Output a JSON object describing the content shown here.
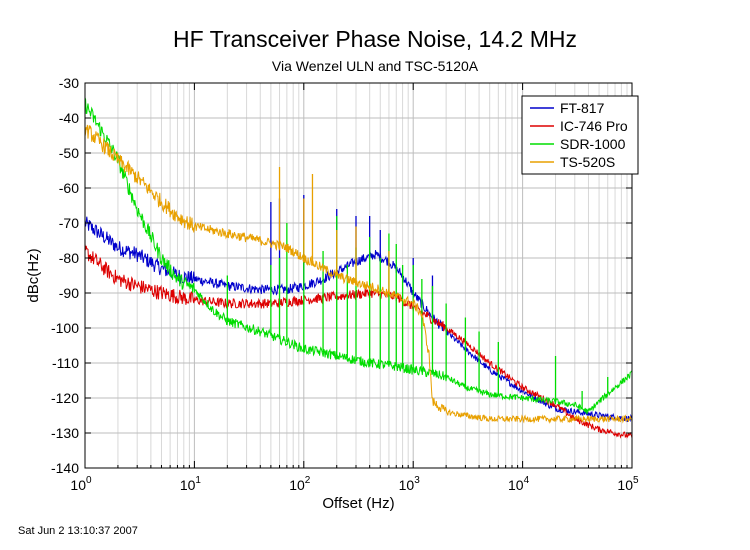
{
  "footer": {
    "timestamp": "Sat Jun  2 13:10:37 2007"
  },
  "chart_data": {
    "type": "line",
    "title": "HF Transceiver Phase Noise, 14.2 MHz",
    "subtitle": "Via Wenzel ULN and TSC-5120A",
    "xlabel": "Offset (Hz)",
    "ylabel": "dBc(Hz)",
    "xscale": "log",
    "xlim": [
      1,
      100000
    ],
    "ylim": [
      -140,
      -30
    ],
    "x_ticks": [
      {
        "base": "10",
        "exp": "0"
      },
      {
        "base": "10",
        "exp": "1"
      },
      {
        "base": "10",
        "exp": "2"
      },
      {
        "base": "10",
        "exp": "3"
      },
      {
        "base": "10",
        "exp": "4"
      },
      {
        "base": "10",
        "exp": "5"
      }
    ],
    "y_ticks": [
      "-30",
      "-40",
      "-50",
      "-60",
      "-70",
      "-80",
      "-90",
      "-100",
      "-110",
      "-120",
      "-130",
      "-140"
    ],
    "grid": true,
    "legend_position": "top-right",
    "series": [
      {
        "name": "FT-817",
        "color": "#0000cc",
        "points": [
          [
            1,
            -70
          ],
          [
            1.5,
            -74
          ],
          [
            2,
            -77
          ],
          [
            3,
            -79
          ],
          [
            5,
            -83
          ],
          [
            7,
            -85
          ],
          [
            10,
            -86
          ],
          [
            20,
            -88
          ],
          [
            40,
            -89
          ],
          [
            70,
            -89
          ],
          [
            100,
            -88
          ],
          [
            150,
            -86
          ],
          [
            200,
            -84
          ],
          [
            300,
            -81
          ],
          [
            450,
            -79
          ],
          [
            600,
            -81
          ],
          [
            800,
            -85
          ],
          [
            1000,
            -90
          ],
          [
            1500,
            -97
          ],
          [
            2000,
            -101
          ],
          [
            3000,
            -106
          ],
          [
            5000,
            -112
          ],
          [
            10000,
            -118
          ],
          [
            15000,
            -121
          ],
          [
            20000,
            -123
          ],
          [
            50000,
            -125
          ],
          [
            100000,
            -126
          ]
        ],
        "spikes": [
          [
            50,
            -64
          ],
          [
            60,
            -63
          ],
          [
            100,
            -62
          ],
          [
            200,
            -66
          ],
          [
            300,
            -68
          ],
          [
            400,
            -68
          ],
          [
            500,
            -72
          ],
          [
            1000,
            -80
          ],
          [
            1500,
            -85
          ]
        ]
      },
      {
        "name": "IC-746 Pro",
        "color": "#dd0000",
        "points": [
          [
            1,
            -78
          ],
          [
            1.5,
            -83
          ],
          [
            2,
            -86
          ],
          [
            3,
            -88
          ],
          [
            5,
            -90
          ],
          [
            7,
            -91
          ],
          [
            10,
            -92
          ],
          [
            20,
            -93
          ],
          [
            50,
            -93
          ],
          [
            100,
            -92
          ],
          [
            200,
            -91
          ],
          [
            400,
            -90
          ],
          [
            700,
            -91
          ],
          [
            1000,
            -94
          ],
          [
            2000,
            -100
          ],
          [
            3000,
            -104
          ],
          [
            5000,
            -110
          ],
          [
            10000,
            -117
          ],
          [
            20000,
            -122
          ],
          [
            30000,
            -126
          ],
          [
            50000,
            -129
          ],
          [
            100000,
            -131
          ]
        ]
      },
      {
        "name": "SDR-1000",
        "color": "#00dd00",
        "points": [
          [
            1,
            -36
          ],
          [
            1.5,
            -45
          ],
          [
            2,
            -52
          ],
          [
            3,
            -66
          ],
          [
            5,
            -80
          ],
          [
            7,
            -86
          ],
          [
            10,
            -89
          ],
          [
            15,
            -95
          ],
          [
            20,
            -98
          ],
          [
            40,
            -101
          ],
          [
            70,
            -104
          ],
          [
            100,
            -106
          ],
          [
            150,
            -107
          ],
          [
            200,
            -108
          ],
          [
            400,
            -110
          ],
          [
            700,
            -111
          ],
          [
            1000,
            -112
          ],
          [
            1500,
            -113
          ],
          [
            2000,
            -114
          ],
          [
            3000,
            -117
          ],
          [
            5000,
            -119
          ],
          [
            10000,
            -120
          ],
          [
            20000,
            -121
          ],
          [
            30000,
            -122
          ],
          [
            40000,
            -124
          ],
          [
            50000,
            -121
          ],
          [
            70000,
            -117
          ],
          [
            100000,
            -113
          ]
        ],
        "spikes": [
          [
            20,
            -85
          ],
          [
            50,
            -82
          ],
          [
            60,
            -80
          ],
          [
            70,
            -70
          ],
          [
            100,
            -75
          ],
          [
            150,
            -78
          ],
          [
            200,
            -68
          ],
          [
            250,
            -82
          ],
          [
            300,
            -77
          ],
          [
            400,
            -74
          ],
          [
            500,
            -80
          ],
          [
            600,
            -73
          ],
          [
            700,
            -76
          ],
          [
            800,
            -82
          ],
          [
            1000,
            -82
          ],
          [
            1200,
            -86
          ],
          [
            1500,
            -88
          ],
          [
            2000,
            -93
          ],
          [
            3000,
            -97
          ],
          [
            4000,
            -101
          ],
          [
            6000,
            -104
          ],
          [
            20000,
            -108
          ],
          [
            35000,
            -118
          ],
          [
            60000,
            -114
          ]
        ]
      },
      {
        "name": "TS-520S",
        "color": "#e8a000",
        "points": [
          [
            1,
            -43
          ],
          [
            1.5,
            -48
          ],
          [
            2,
            -52
          ],
          [
            3,
            -57
          ],
          [
            5,
            -64
          ],
          [
            7,
            -68
          ],
          [
            10,
            -71
          ],
          [
            20,
            -73
          ],
          [
            40,
            -75
          ],
          [
            70,
            -77
          ],
          [
            100,
            -80
          ],
          [
            150,
            -83
          ],
          [
            200,
            -85
          ],
          [
            300,
            -87
          ],
          [
            500,
            -89
          ],
          [
            700,
            -91
          ],
          [
            1000,
            -93
          ],
          [
            1200,
            -96
          ],
          [
            1400,
            -108
          ],
          [
            1500,
            -121
          ],
          [
            2000,
            -124
          ],
          [
            3000,
            -125
          ],
          [
            5000,
            -126
          ],
          [
            10000,
            -126
          ],
          [
            100000,
            -126
          ]
        ],
        "spikes": [
          [
            60,
            -54
          ],
          [
            100,
            -63
          ],
          [
            120,
            -56
          ],
          [
            200,
            -72
          ],
          [
            300,
            -71
          ],
          [
            600,
            -78
          ]
        ]
      }
    ]
  }
}
